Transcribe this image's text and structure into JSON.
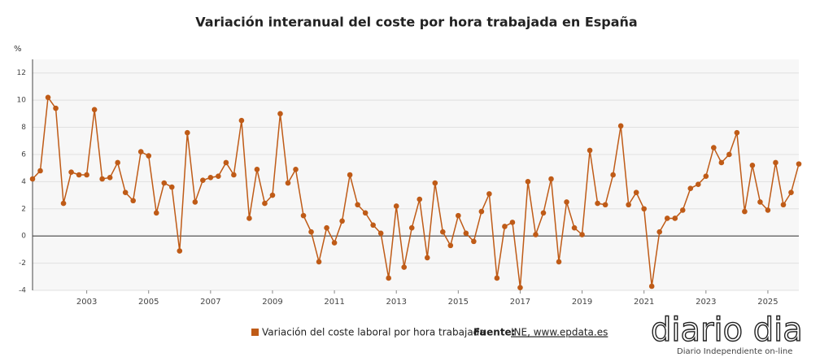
{
  "chart_data": {
    "type": "line",
    "title": "Variación interanual del coste por hora trabajada en España",
    "y_label": "%",
    "x": [
      2001.25,
      2001.5,
      2001.75,
      2002,
      2002.25,
      2002.5,
      2002.75,
      2003,
      2003.25,
      2003.5,
      2003.75,
      2004,
      2004.25,
      2004.5,
      2004.75,
      2005,
      2005.25,
      2005.5,
      2005.75,
      2006,
      2006.25,
      2006.5,
      2006.75,
      2007,
      2007.25,
      2007.5,
      2007.75,
      2008,
      2008.25,
      2008.5,
      2008.75,
      2009,
      2009.25,
      2009.5,
      2009.75,
      2010,
      2010.25,
      2010.5,
      2010.75,
      2011,
      2011.25,
      2011.5,
      2011.75,
      2012,
      2012.25,
      2012.5,
      2012.75,
      2013,
      2013.25,
      2013.5,
      2013.75,
      2014,
      2014.25,
      2014.5,
      2014.75,
      2015,
      2015.25,
      2015.5,
      2015.75,
      2016,
      2016.25,
      2016.5,
      2016.75,
      2017,
      2017.25,
      2017.5,
      2017.75,
      2018,
      2018.25,
      2018.5,
      2018.75,
      2019,
      2019.25,
      2019.5,
      2019.75,
      2020,
      2020.25,
      2020.5,
      2020.75,
      2021,
      2021.25,
      2021.5,
      2021.75,
      2022,
      2022.25,
      2022.5,
      2022.75,
      2023,
      2023.25,
      2023.5,
      2023.75,
      2024,
      2024.25,
      2024.5,
      2024.75,
      2025,
      2025.25,
      2025.5,
      2025.75,
      2026
    ],
    "series": [
      {
        "name": "Variación del coste laboral por hora trabajada",
        "color": "#bf5b17",
        "values": [
          4.2,
          4.8,
          10.2,
          9.4,
          2.4,
          4.7,
          4.5,
          4.5,
          9.3,
          4.2,
          4.3,
          5.4,
          3.2,
          2.6,
          6.2,
          5.9,
          1.7,
          3.9,
          3.6,
          -1.1,
          7.6,
          2.5,
          4.1,
          4.3,
          4.4,
          5.4,
          4.5,
          8.5,
          1.3,
          4.9,
          2.4,
          3.0,
          9.0,
          3.9,
          4.9,
          1.5,
          0.3,
          -1.9,
          0.6,
          -0.5,
          1.1,
          4.5,
          2.3,
          1.7,
          0.8,
          0.2,
          -3.1,
          2.2,
          -2.3,
          0.6,
          2.7,
          -1.6,
          3.9,
          0.3,
          -0.7,
          1.5,
          0.2,
          -0.4,
          1.8,
          3.1,
          -3.1,
          0.7,
          1.0,
          -3.8,
          4.0,
          0.1,
          1.7,
          4.2,
          -1.9,
          2.5,
          0.6,
          0.1,
          6.3,
          2.4,
          2.3,
          4.5,
          8.1,
          2.3,
          3.2,
          2.0,
          -3.7,
          0.3,
          1.3,
          1.3,
          1.9,
          3.5,
          3.8,
          4.4,
          6.5,
          5.4,
          6.0,
          7.6,
          1.8,
          5.2,
          2.5,
          1.9,
          5.4,
          2.3,
          3.2,
          5.3
        ]
      }
    ],
    "xlim": [
      2001.25,
      2026
    ],
    "xticks": [
      2003,
      2005,
      2007,
      2009,
      2011,
      2013,
      2015,
      2017,
      2019,
      2021,
      2023,
      2025
    ],
    "ylim": [
      -4,
      13
    ],
    "yticks": [
      -4,
      -2,
      0,
      2,
      4,
      6,
      8,
      10,
      12
    ],
    "grid": true,
    "source_label": "Fuente:",
    "source": "INE, www.epdata.es",
    "logo": "diario dia",
    "logo_tagline": "Diario Independiente on-line"
  }
}
